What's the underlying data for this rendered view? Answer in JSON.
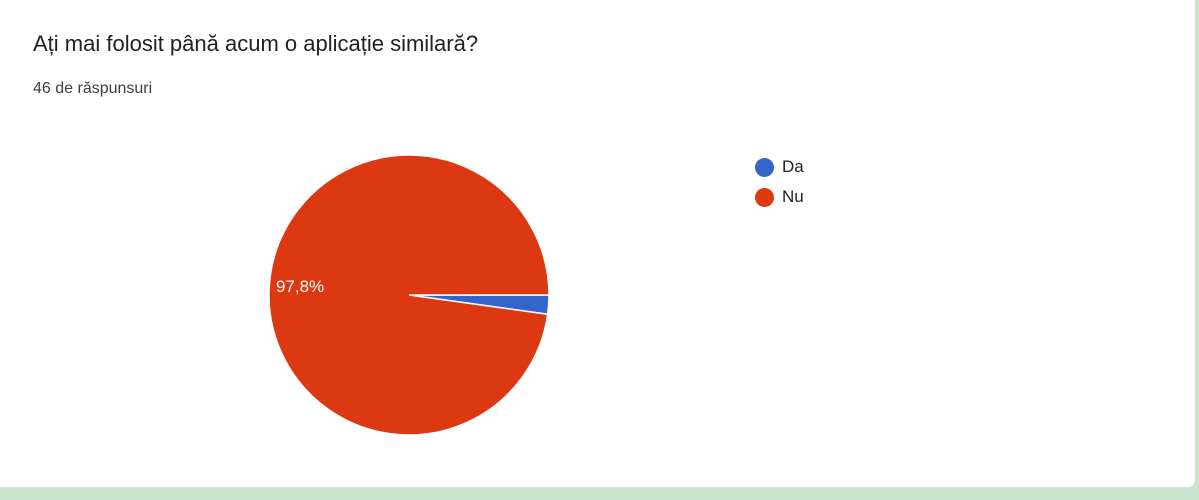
{
  "question": {
    "title": "Ați mai folosit până acum o aplicație similară?",
    "responses": "46 de răspunsuri"
  },
  "chart_data": {
    "type": "pie",
    "title": "Ați mai folosit până acum o aplicație similară?",
    "categories": [
      "Da",
      "Nu"
    ],
    "values": [
      2.2,
      97.8
    ],
    "colors": [
      "#3366cc",
      "#dc3912"
    ],
    "labels": [
      "",
      "97,8%"
    ],
    "legend_position": "right"
  }
}
